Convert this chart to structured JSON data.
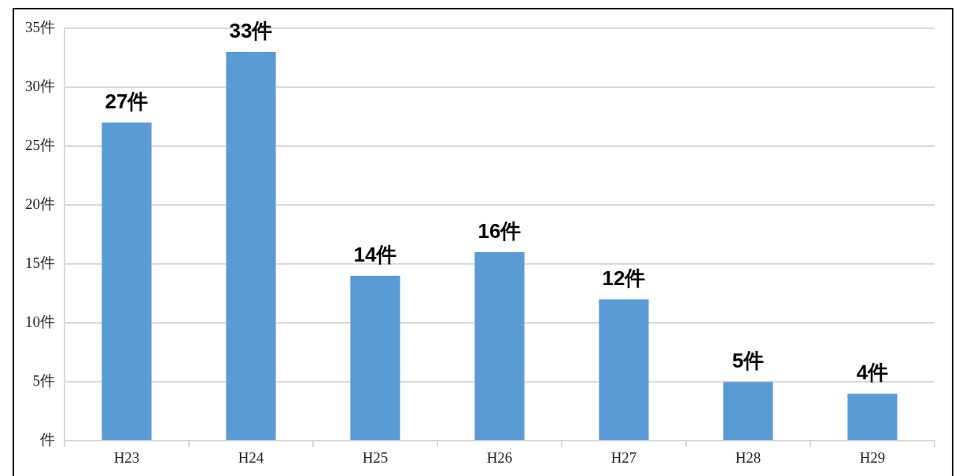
{
  "chart_data": {
    "type": "bar",
    "categories": [
      "H23",
      "H24",
      "H25",
      "H26",
      "H27",
      "H28",
      "H29"
    ],
    "values": [
      27,
      33,
      14,
      16,
      12,
      5,
      4
    ],
    "color": "#5b9bd5",
    "value_labels": [
      "27件",
      "33件",
      "14件",
      "16件",
      "12件",
      "5件",
      "4件"
    ],
    "ylim": [
      0,
      35
    ],
    "yticks": [
      {
        "value": 0,
        "label": "件"
      },
      {
        "value": 5,
        "label": "5件"
      },
      {
        "value": 10,
        "label": "10件"
      },
      {
        "value": 15,
        "label": "15件"
      },
      {
        "value": 20,
        "label": "20件"
      },
      {
        "value": 25,
        "label": "25件"
      },
      {
        "value": 30,
        "label": "30件"
      },
      {
        "value": 35,
        "label": "35件"
      }
    ],
    "grid": "y",
    "legend": false
  }
}
